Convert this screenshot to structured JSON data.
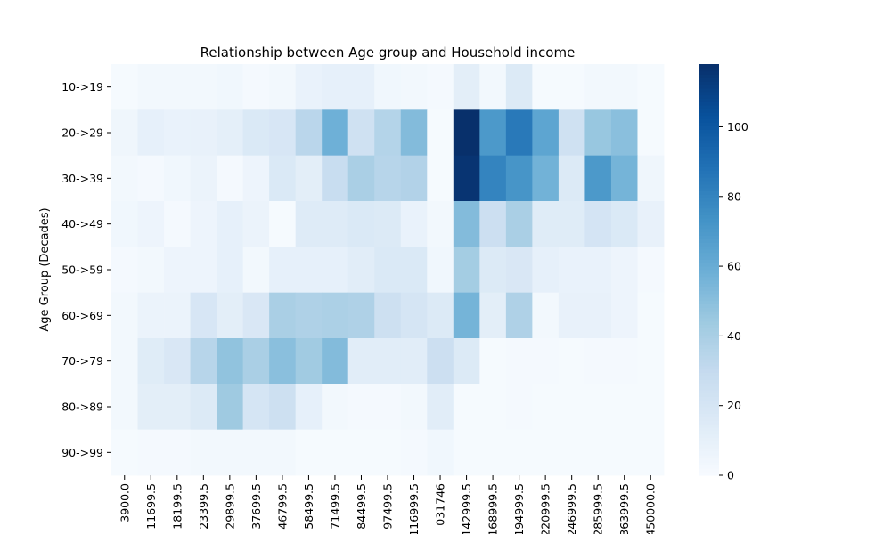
{
  "chart_data": {
    "type": "heatmap",
    "title": "Relationship between Age group and Household income",
    "ylabel": "Age Group (Decades)",
    "xlabel": "",
    "y_categories": [
      "10->19",
      "20->29",
      "30->39",
      "40->49",
      "50->59",
      "60->69",
      "70->79",
      "80->89",
      "90->99"
    ],
    "x_categories": [
      "3900.0",
      "11699.5",
      "18199.5",
      "23399.5",
      "29899.5",
      "37699.5",
      "46799.5",
      "58499.5",
      "71499.5",
      "84499.5",
      "97499.5",
      "116999.5",
      "031746",
      "142999.5",
      "168999.5",
      "194999.5",
      "220999.5",
      "246999.5",
      "285999.5",
      "363999.5",
      "450000.0"
    ],
    "values": [
      [
        1,
        3,
        3,
        3,
        4,
        2,
        3,
        8,
        10,
        10,
        4,
        3,
        2,
        12,
        3,
        16,
        1,
        1,
        3,
        3,
        1
      ],
      [
        5,
        10,
        8,
        9,
        11,
        17,
        19,
        34,
        58,
        24,
        36,
        52,
        1,
        118,
        70,
        85,
        64,
        24,
        46,
        50,
        1
      ],
      [
        3,
        2,
        4,
        7,
        2,
        6,
        17,
        12,
        28,
        40,
        35,
        37,
        1,
        116,
        80,
        72,
        57,
        16,
        70,
        56,
        5
      ],
      [
        4,
        6,
        2,
        6,
        10,
        7,
        1,
        15,
        15,
        17,
        16,
        8,
        3,
        52,
        26,
        40,
        14,
        14,
        21,
        17,
        9
      ],
      [
        2,
        3,
        6,
        6,
        10,
        3,
        10,
        10,
        10,
        13,
        17,
        17,
        4,
        42,
        16,
        18,
        10,
        8,
        8,
        6,
        2
      ],
      [
        3,
        7,
        7,
        19,
        12,
        18,
        40,
        38,
        39,
        38,
        25,
        20,
        16,
        56,
        12,
        38,
        3,
        9,
        9,
        6,
        1
      ],
      [
        3,
        14,
        18,
        35,
        48,
        40,
        50,
        43,
        52,
        13,
        13,
        13,
        26,
        16,
        1,
        2,
        2,
        1,
        2,
        2,
        1
      ],
      [
        3,
        12,
        12,
        16,
        44,
        20,
        25,
        10,
        3,
        2,
        2,
        3,
        13,
        1,
        1,
        2,
        1,
        1,
        1,
        1,
        1
      ],
      [
        1,
        2,
        2,
        3,
        3,
        3,
        3,
        1,
        1,
        1,
        1,
        2,
        4,
        1,
        1,
        1,
        1,
        1,
        1,
        1,
        1
      ]
    ],
    "colorbar": {
      "min": 0,
      "max": 118,
      "ticks": [
        0,
        20,
        40,
        60,
        80,
        100
      ],
      "colormap": "Blues"
    }
  }
}
